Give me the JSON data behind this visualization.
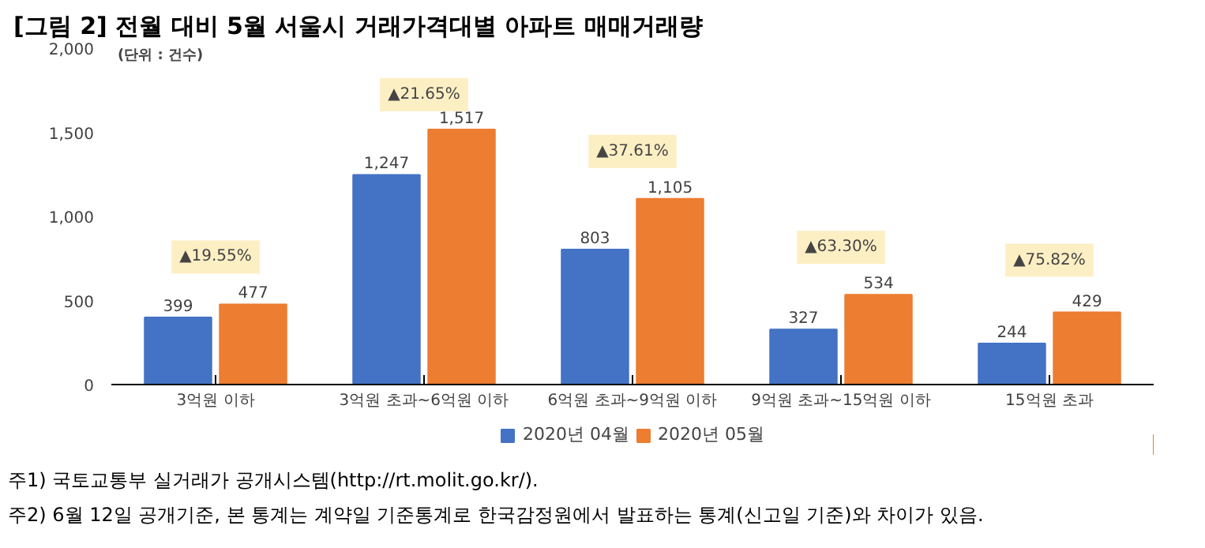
{
  "chart_data": {
    "type": "bar",
    "title": "[그림 2] 전월 대비 5월 서울시 거래가격대별 아파트 매매거래량",
    "ylabel": "(단위 : 건수)",
    "categories": [
      "3억원 이하",
      "3억원 초과~6억원 이하",
      "6억원 초과~9억원 이하",
      "9억원 초과~15억원 이하",
      "15억원 초과"
    ],
    "series": [
      {
        "name": "2020년 04월",
        "color": "#4472c4",
        "values": [
          399,
          1247,
          803,
          327,
          244
        ],
        "value_labels": [
          "399",
          "1,247",
          "803",
          "327",
          "244"
        ]
      },
      {
        "name": "2020년 05월",
        "color": "#ed7d31",
        "values": [
          477,
          1517,
          1105,
          534,
          429
        ],
        "value_labels": [
          "477",
          "1,517",
          "1,105",
          "534",
          "429"
        ]
      }
    ],
    "ylim": [
      0,
      2000
    ],
    "yticks": [
      0,
      {
        "value": 500,
        "label": "500"
      },
      {
        "value": 1000,
        "label": "1,000"
      },
      {
        "value": 1500,
        "label": "1,500"
      },
      {
        "value": 2000,
        "label": "2,000"
      }
    ],
    "grid": false,
    "legend": "bottom",
    "annotations": [
      "▲19.55%",
      "▲21.65%",
      "▲37.61%",
      "▲63.30%",
      "▲75.82%",
      "주1) 국토교통부 실거래가 공개시스템(http://rt.molit.go.kr/).",
      "주2) 6월 12일 공개기준, 본 통계는 계약일 기준통계로 한국감정원에서 발표하는 통계(신고일 기준)와 차이가 있음."
    ]
  }
}
